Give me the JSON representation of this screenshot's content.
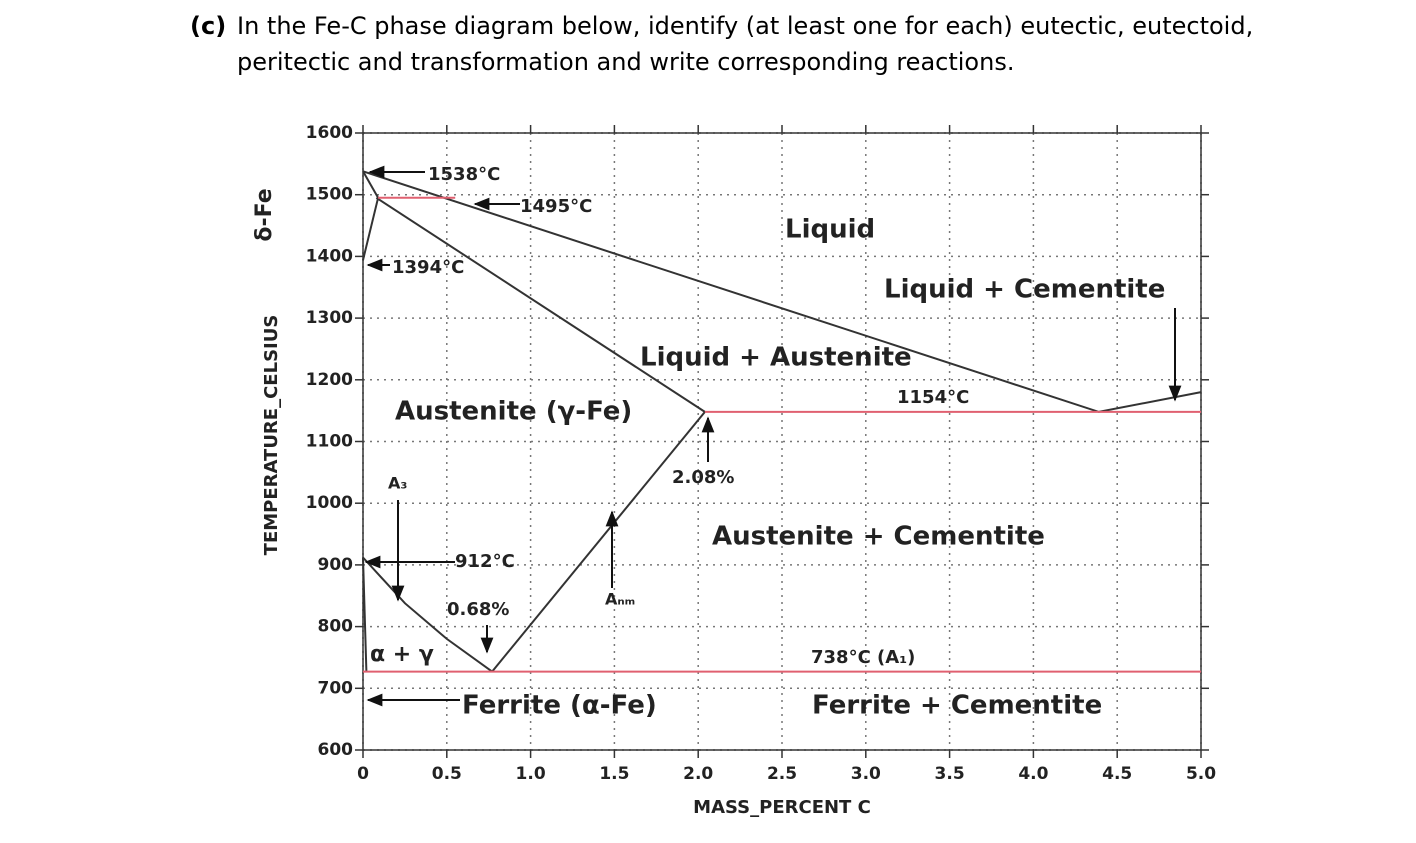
{
  "question": {
    "label": "(c)",
    "text": "In the Fe-C phase diagram below, identify (at least one for each) eutectic, eutectoid, peritectic and transformation and write corresponding reactions."
  },
  "chart_data": {
    "type": "phase-diagram",
    "xlabel": "MASS_PERCENT C",
    "ylabel": "TEMPERATURE_CELSIUS",
    "side_label": "δ-Fe",
    "xlim": [
      0,
      5
    ],
    "ylim": [
      600,
      1600
    ],
    "xticks": [
      0,
      0.5,
      {
        "value": 1,
        "label": "1.0"
      },
      1.5,
      {
        "value": 2,
        "label": "2.0"
      },
      2.5,
      {
        "value": 3,
        "label": "3.0"
      },
      3.5,
      {
        "value": 4,
        "label": "4.0"
      },
      4.5,
      {
        "value": 5,
        "label": "5.0"
      }
    ],
    "yticks": [
      600,
      700,
      800,
      900,
      1000,
      1100,
      1200,
      1300,
      1400,
      1500,
      1600
    ],
    "grid": true,
    "lines": [
      {
        "color": "#333333",
        "x": [
          0,
          4.39,
          5
        ],
        "y": [
          1538,
          1148,
          1180
        ]
      },
      {
        "color": "#333333",
        "x": [
          0.08,
          2.04
        ],
        "y": [
          1495,
          1148
        ]
      },
      {
        "color": "#333333",
        "x": [
          0,
          0.09
        ],
        "y": [
          1538,
          1495
        ]
      },
      {
        "color": "#333333",
        "x": [
          0,
          0.09
        ],
        "y": [
          1394,
          1495
        ]
      },
      {
        "color": "#333333",
        "x": [
          2.04,
          0.77
        ],
        "y": [
          1148,
          727
        ]
      },
      {
        "color": "#333333",
        "x": [
          0,
          0.25,
          0.5,
          0.77
        ],
        "y": [
          912,
          838,
          780,
          727
        ]
      },
      {
        "color": "#333333",
        "x": [
          0,
          0.02
        ],
        "y": [
          912,
          727
        ]
      },
      {
        "color": "#e06070",
        "x": [
          0.09,
          0.55
        ],
        "y": [
          1495,
          1495
        ]
      },
      {
        "color": "#e06070",
        "x": [
          2.04,
          5
        ],
        "y": [
          1148,
          1148
        ]
      },
      {
        "color": "#e06070",
        "x": [
          0,
          5
        ],
        "y": [
          727,
          727
        ]
      }
    ],
    "annotations": [
      "1538°C",
      "1495°C",
      "1394°C",
      "Liquid",
      "Liquid + Cementite",
      "Liquid + Austenite",
      "1154°C",
      "Austenite (γ-Fe)",
      "2.08%",
      "A₃",
      "Austenite + Cementite",
      "912°C",
      "Aₙₘ",
      "0.68%",
      "α + γ",
      "738°C (A₁)",
      "Ferrite (α-Fe)",
      "Ferrite + Cementite"
    ]
  }
}
